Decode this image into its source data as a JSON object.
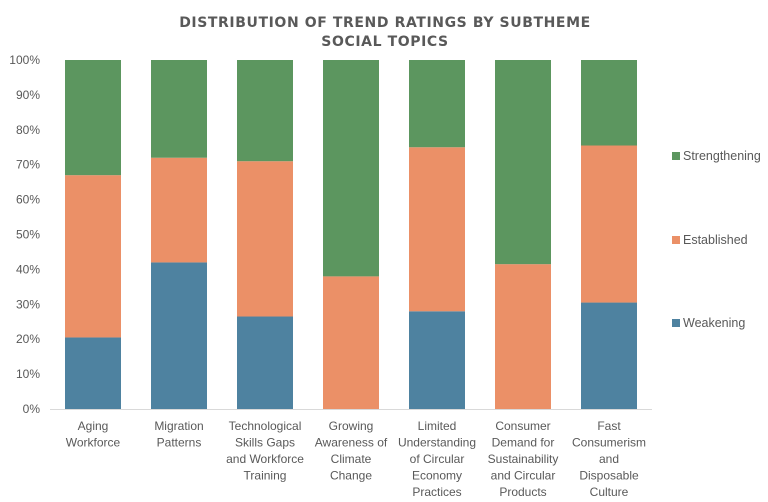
{
  "chart_data": {
    "type": "bar",
    "stacked": true,
    "percent": true,
    "title": [
      "DISTRIBUTION OF TREND RATINGS BY SUBTHEME",
      "SOCIAL TOPICS"
    ],
    "categories": [
      [
        "Aging",
        "Workforce"
      ],
      [
        "Migration",
        "Patterns"
      ],
      [
        "Technological",
        "Skills Gaps",
        "and Workforce",
        "Training"
      ],
      [
        "Growing",
        "Awareness of",
        "Climate",
        "Change"
      ],
      [
        "Limited",
        "Understanding",
        "of Circular",
        "Economy",
        "Practices"
      ],
      [
        "Consumer",
        "Demand for",
        "Sustainability",
        "and Circular",
        "Products"
      ],
      [
        "Fast",
        "Consumerism",
        "and",
        "Disposable",
        "Culture"
      ]
    ],
    "series": [
      {
        "name": "Weakening",
        "color": "#4e82a0",
        "values": [
          20.5,
          42,
          26.5,
          0,
          28,
          0,
          30.5
        ]
      },
      {
        "name": "Established",
        "color": "#eb9067",
        "values": [
          46.5,
          30,
          44.5,
          38,
          47,
          41.5,
          45
        ]
      },
      {
        "name": "Strengthening",
        "color": "#5c965f",
        "values": [
          33,
          28,
          29,
          62,
          25,
          58.5,
          24.5
        ]
      }
    ],
    "yticks": [
      "0%",
      "10%",
      "20%",
      "30%",
      "40%",
      "50%",
      "60%",
      "70%",
      "80%",
      "90%",
      "100%"
    ],
    "ylim": [
      0,
      100
    ],
    "grid": false,
    "legend": "right"
  }
}
